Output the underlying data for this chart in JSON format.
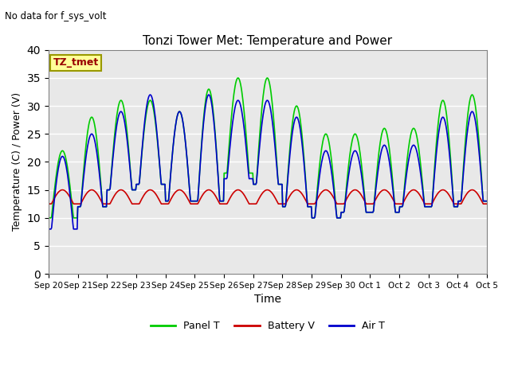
{
  "title": "Tonzi Tower Met: Temperature and Power",
  "subtitle": "No data for f_sys_volt",
  "xlabel": "Time",
  "ylabel": "Temperature (C) / Power (V)",
  "ylim": [
    0,
    40
  ],
  "yticks": [
    0,
    5,
    10,
    15,
    20,
    25,
    30,
    35,
    40
  ],
  "xtick_labels": [
    "Sep 20",
    "Sep 21",
    "Sep 22",
    "Sep 23",
    "Sep 24",
    "Sep 25",
    "Sep 26",
    "Sep 27",
    "Sep 28",
    "Sep 29",
    "Sep 30",
    "Oct 1",
    "Oct 2",
    "Oct 3",
    "Oct 4",
    "Oct 5"
  ],
  "annotation_text": "TZ_tmet",
  "annotation_box_color": "#FFFF99",
  "annotation_text_color": "#990000",
  "panel_t_color": "#00CC00",
  "battery_v_color": "#CC0000",
  "air_t_color": "#0000CC",
  "bg_color": "#E8E8E8",
  "legend_labels": [
    "Panel T",
    "Battery V",
    "Air T"
  ],
  "n_days": 15,
  "panel_t_peaks": [
    22,
    28,
    31,
    31,
    29,
    33,
    35,
    35,
    30,
    25,
    25,
    26,
    26,
    31,
    32
  ],
  "air_t_peaks": [
    21,
    25,
    29,
    32,
    29,
    32,
    31,
    31,
    28,
    22,
    22,
    23,
    23,
    28,
    29
  ],
  "panel_t_troughs": [
    10,
    12,
    15,
    16,
    13,
    13,
    18,
    16,
    12,
    10,
    11,
    11,
    12,
    12,
    13
  ],
  "air_t_troughs": [
    8,
    12,
    15,
    16,
    13,
    13,
    17,
    16,
    12,
    10,
    11,
    11,
    12,
    12,
    13
  ],
  "battery_v_peaks": [
    15,
    15,
    15,
    15,
    15,
    15,
    15,
    15,
    15,
    15,
    15,
    15,
    15,
    15,
    15
  ],
  "battery_v_troughs": [
    12.5,
    12.5,
    12.5,
    12.5,
    12.5,
    12.5,
    12.5,
    12.5,
    12.5,
    12.5,
    12.5,
    12.5,
    12.5,
    12.5,
    12.5
  ]
}
